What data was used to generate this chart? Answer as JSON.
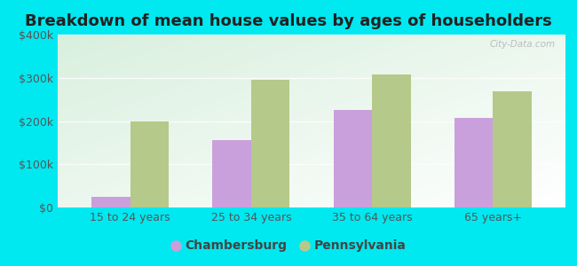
{
  "title": "Breakdown of mean house values by ages of householders",
  "categories": [
    "15 to 24 years",
    "25 to 34 years",
    "35 to 64 years",
    "65 years+"
  ],
  "chambersburg": [
    25000,
    155000,
    225000,
    207000
  ],
  "pennsylvania": [
    200000,
    295000,
    308000,
    268000
  ],
  "chambersburg_color": "#c9a0dc",
  "pennsylvania_color": "#b5c98a",
  "background_color": "#00e8f0",
  "ylim": [
    0,
    400000
  ],
  "yticks": [
    0,
    100000,
    200000,
    300000,
    400000
  ],
  "ytick_labels": [
    "$0",
    "$100k",
    "$200k",
    "$300k",
    "$400k"
  ],
  "legend_labels": [
    "Chambersburg",
    "Pennsylvania"
  ],
  "watermark": "City-Data.com",
  "bar_width": 0.32,
  "title_fontsize": 13,
  "tick_fontsize": 9,
  "legend_fontsize": 10
}
